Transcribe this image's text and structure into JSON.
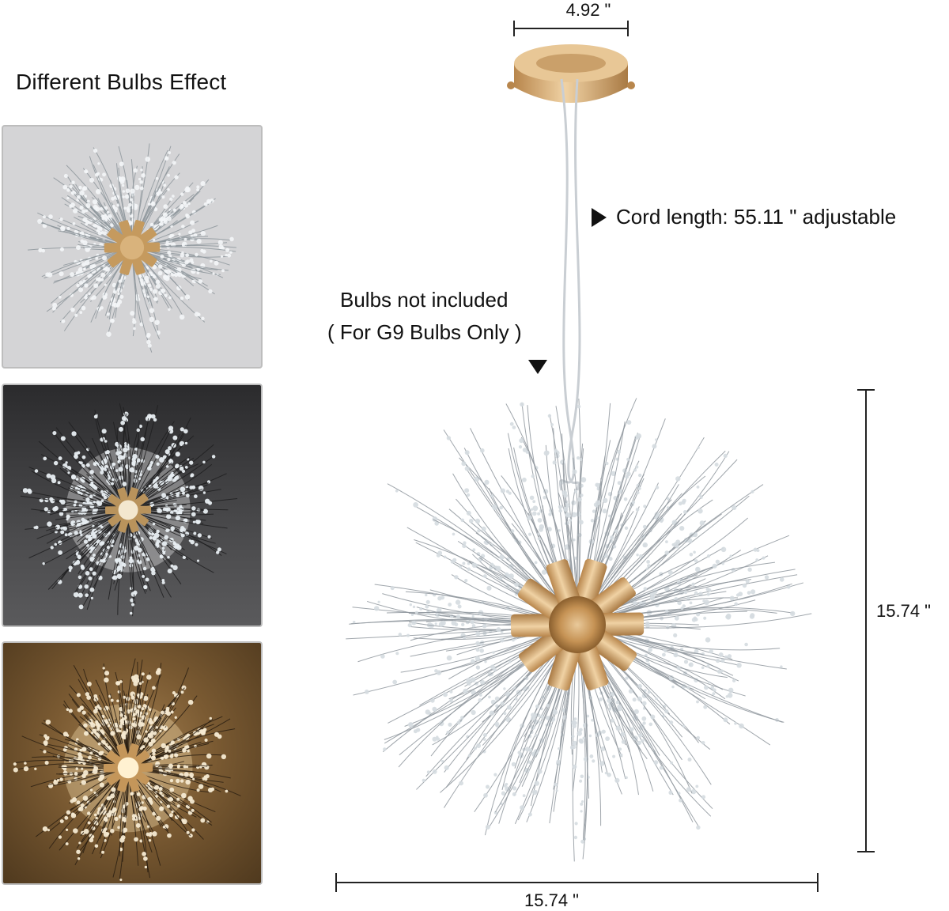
{
  "left_panel": {
    "title": "Different Bulbs Effect",
    "thumbnails": [
      {
        "name": "unlit",
        "bg": "#d4d4d6"
      },
      {
        "name": "cool-white",
        "bg": "#3b3b3d"
      },
      {
        "name": "warm-white",
        "bg": "#6a4f2c"
      }
    ]
  },
  "dimensions": {
    "canopy_width": "4.92 \"",
    "cord_length": "Cord length: 55.11 \" adjustable",
    "height": "15.74 \"",
    "width": "15.74 \""
  },
  "notes": {
    "bulbs_line1": "Bulbs not included",
    "bulbs_line2": "( For G9 Bulbs Only )"
  },
  "icons": {
    "pointer_right": "triangle-right-icon",
    "pointer_down": "triangle-down-icon"
  },
  "colors": {
    "gold": "#c9a267",
    "crystal": "#a9b3bb",
    "line": "#222222"
  }
}
